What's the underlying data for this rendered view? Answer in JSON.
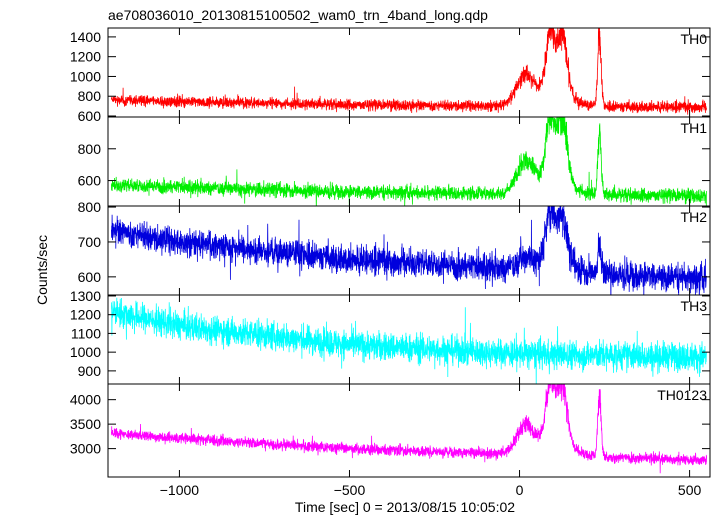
{
  "chart_data": {
    "type": "line",
    "title": "ae708036010_20130815100502_wam0_trn_4band_long.qdp",
    "xlabel": "Time [sec] 0 = 2013/08/15 10:05:02",
    "ylabel": "Counts/sec",
    "xlim": [
      -1210,
      560
    ],
    "x_ticks": [
      -1000,
      -500,
      0,
      500
    ],
    "x_tick_labels": [
      "−1000",
      "−500",
      "0",
      "500"
    ],
    "grid": false,
    "panels": [
      {
        "name": "TH0",
        "color": "#ff0000",
        "ylim": [
          590,
          1490
        ],
        "y_ticks": [
          600,
          800,
          1000,
          1200,
          1400
        ],
        "baseline": [
          [
            -1200,
            760
          ],
          [
            -1000,
            745
          ],
          [
            -500,
            715
          ],
          [
            0,
            700
          ],
          [
            550,
            690
          ]
        ],
        "noise": 28,
        "peaks": [
          [
            15,
            290,
            25
          ],
          [
            90,
            550,
            12
          ],
          [
            125,
            570,
            14
          ],
          [
            100,
            200,
            45
          ],
          [
            235,
            720,
            5
          ]
        ]
      },
      {
        "name": "TH1",
        "color": "#00ee00",
        "ylim": [
          440,
          1000
        ],
        "y_ticks": [
          600,
          800
        ],
        "baseline": [
          [
            -1200,
            570
          ],
          [
            -1000,
            560
          ],
          [
            -500,
            530
          ],
          [
            0,
            515
          ],
          [
            550,
            505
          ]
        ],
        "noise": 22,
        "peaks": [
          [
            15,
            190,
            25
          ],
          [
            90,
            380,
            12
          ],
          [
            125,
            390,
            14
          ],
          [
            100,
            120,
            45
          ],
          [
            235,
            380,
            5
          ]
        ]
      },
      {
        "name": "TH2",
        "color": "#0000dd",
        "ylim": [
          548,
          803
        ],
        "y_ticks": [
          600,
          700,
          800
        ],
        "baseline": [
          [
            -1200,
            735
          ],
          [
            -1000,
            700
          ],
          [
            -500,
            650
          ],
          [
            0,
            622
          ],
          [
            550,
            595
          ]
        ],
        "noise": 20,
        "peaks": [
          [
            15,
            25,
            25
          ],
          [
            90,
            140,
            12
          ],
          [
            125,
            120,
            14
          ],
          [
            100,
            45,
            45
          ],
          [
            235,
            80,
            5
          ]
        ]
      },
      {
        "name": "TH3",
        "color": "#00ffff",
        "ylim": [
          830,
          1305
        ],
        "y_ticks": [
          900,
          1000,
          1100,
          1200,
          1300
        ],
        "baseline": [
          [
            -1200,
            1220
          ],
          [
            -1000,
            1140
          ],
          [
            -500,
            1040
          ],
          [
            0,
            990
          ],
          [
            550,
            975
          ]
        ],
        "noise": 38,
        "peaks": []
      },
      {
        "name": "TH0123",
        "color": "#ff00ff",
        "ylim": [
          2420,
          4320
        ],
        "y_ticks": [
          3000,
          3500,
          4000
        ],
        "baseline": [
          [
            -1200,
            3310
          ],
          [
            -1000,
            3210
          ],
          [
            -500,
            3000
          ],
          [
            0,
            2880
          ],
          [
            550,
            2760
          ]
        ],
        "noise": 55,
        "peaks": [
          [
            15,
            550,
            25
          ],
          [
            90,
            1150,
            12
          ],
          [
            125,
            1200,
            14
          ],
          [
            100,
            400,
            45
          ],
          [
            235,
            1300,
            5
          ]
        ]
      }
    ]
  }
}
